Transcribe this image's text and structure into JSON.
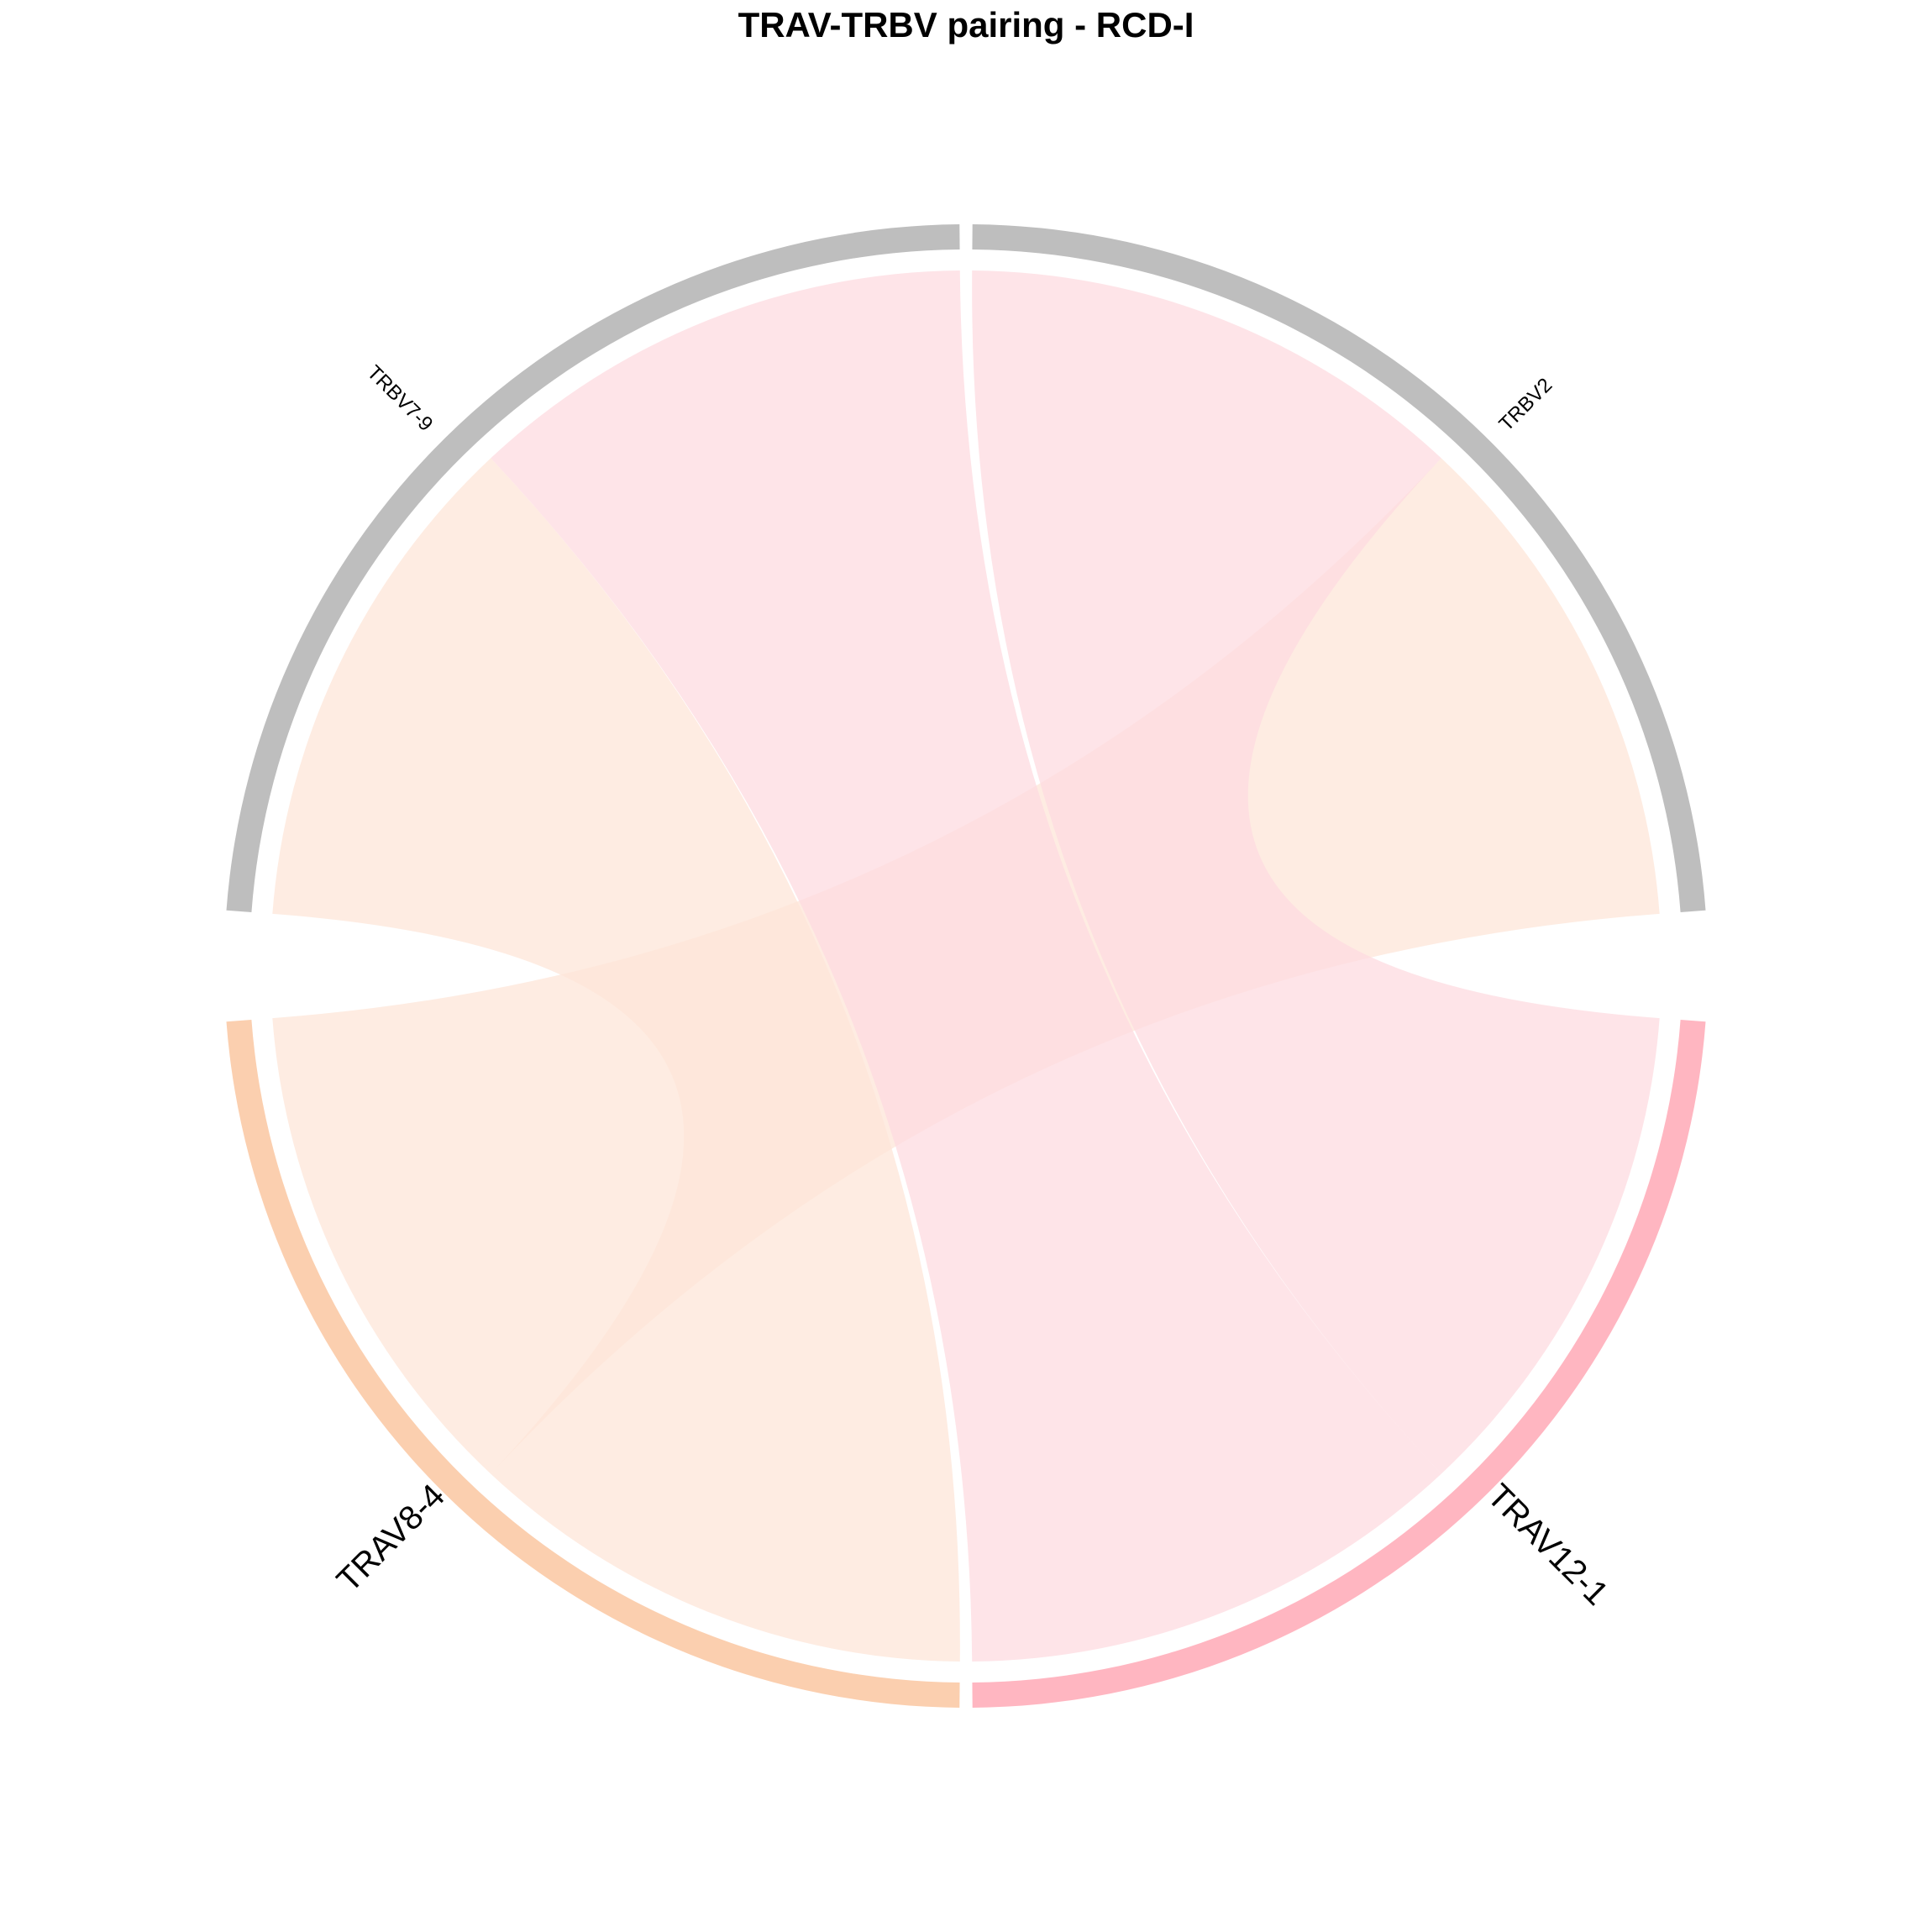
{
  "chart_data": {
    "type": "chord",
    "title": "TRAV-TRBV pairing - RCD-I",
    "sectors": [
      {
        "name": "TRBV2",
        "group": "TRBV",
        "color": "#BEBEBE",
        "size": 2
      },
      {
        "name": "TRAV12-1",
        "group": "TRAV",
        "color": "#FFB6C1",
        "size": 2
      },
      {
        "name": "TRAV8-4",
        "group": "TRAV",
        "color": "#FBCFAF",
        "size": 2
      },
      {
        "name": "TRBV7-9",
        "group": "TRBV",
        "color": "#BEBEBE",
        "size": 2
      }
    ],
    "links": [
      {
        "from": "TRAV8-4",
        "to": "TRBV2",
        "value": 1,
        "color": "#FDE6D8"
      },
      {
        "from": "TRAV8-4",
        "to": "TRBV7-9",
        "value": 1,
        "color": "#FDE6D8"
      },
      {
        "from": "TRAV12-1",
        "to": "TRBV2",
        "value": 1,
        "color": "#FDDBE0"
      },
      {
        "from": "TRAV12-1",
        "to": "TRBV7-9",
        "value": 1,
        "color": "#FDDBE0"
      }
    ]
  }
}
